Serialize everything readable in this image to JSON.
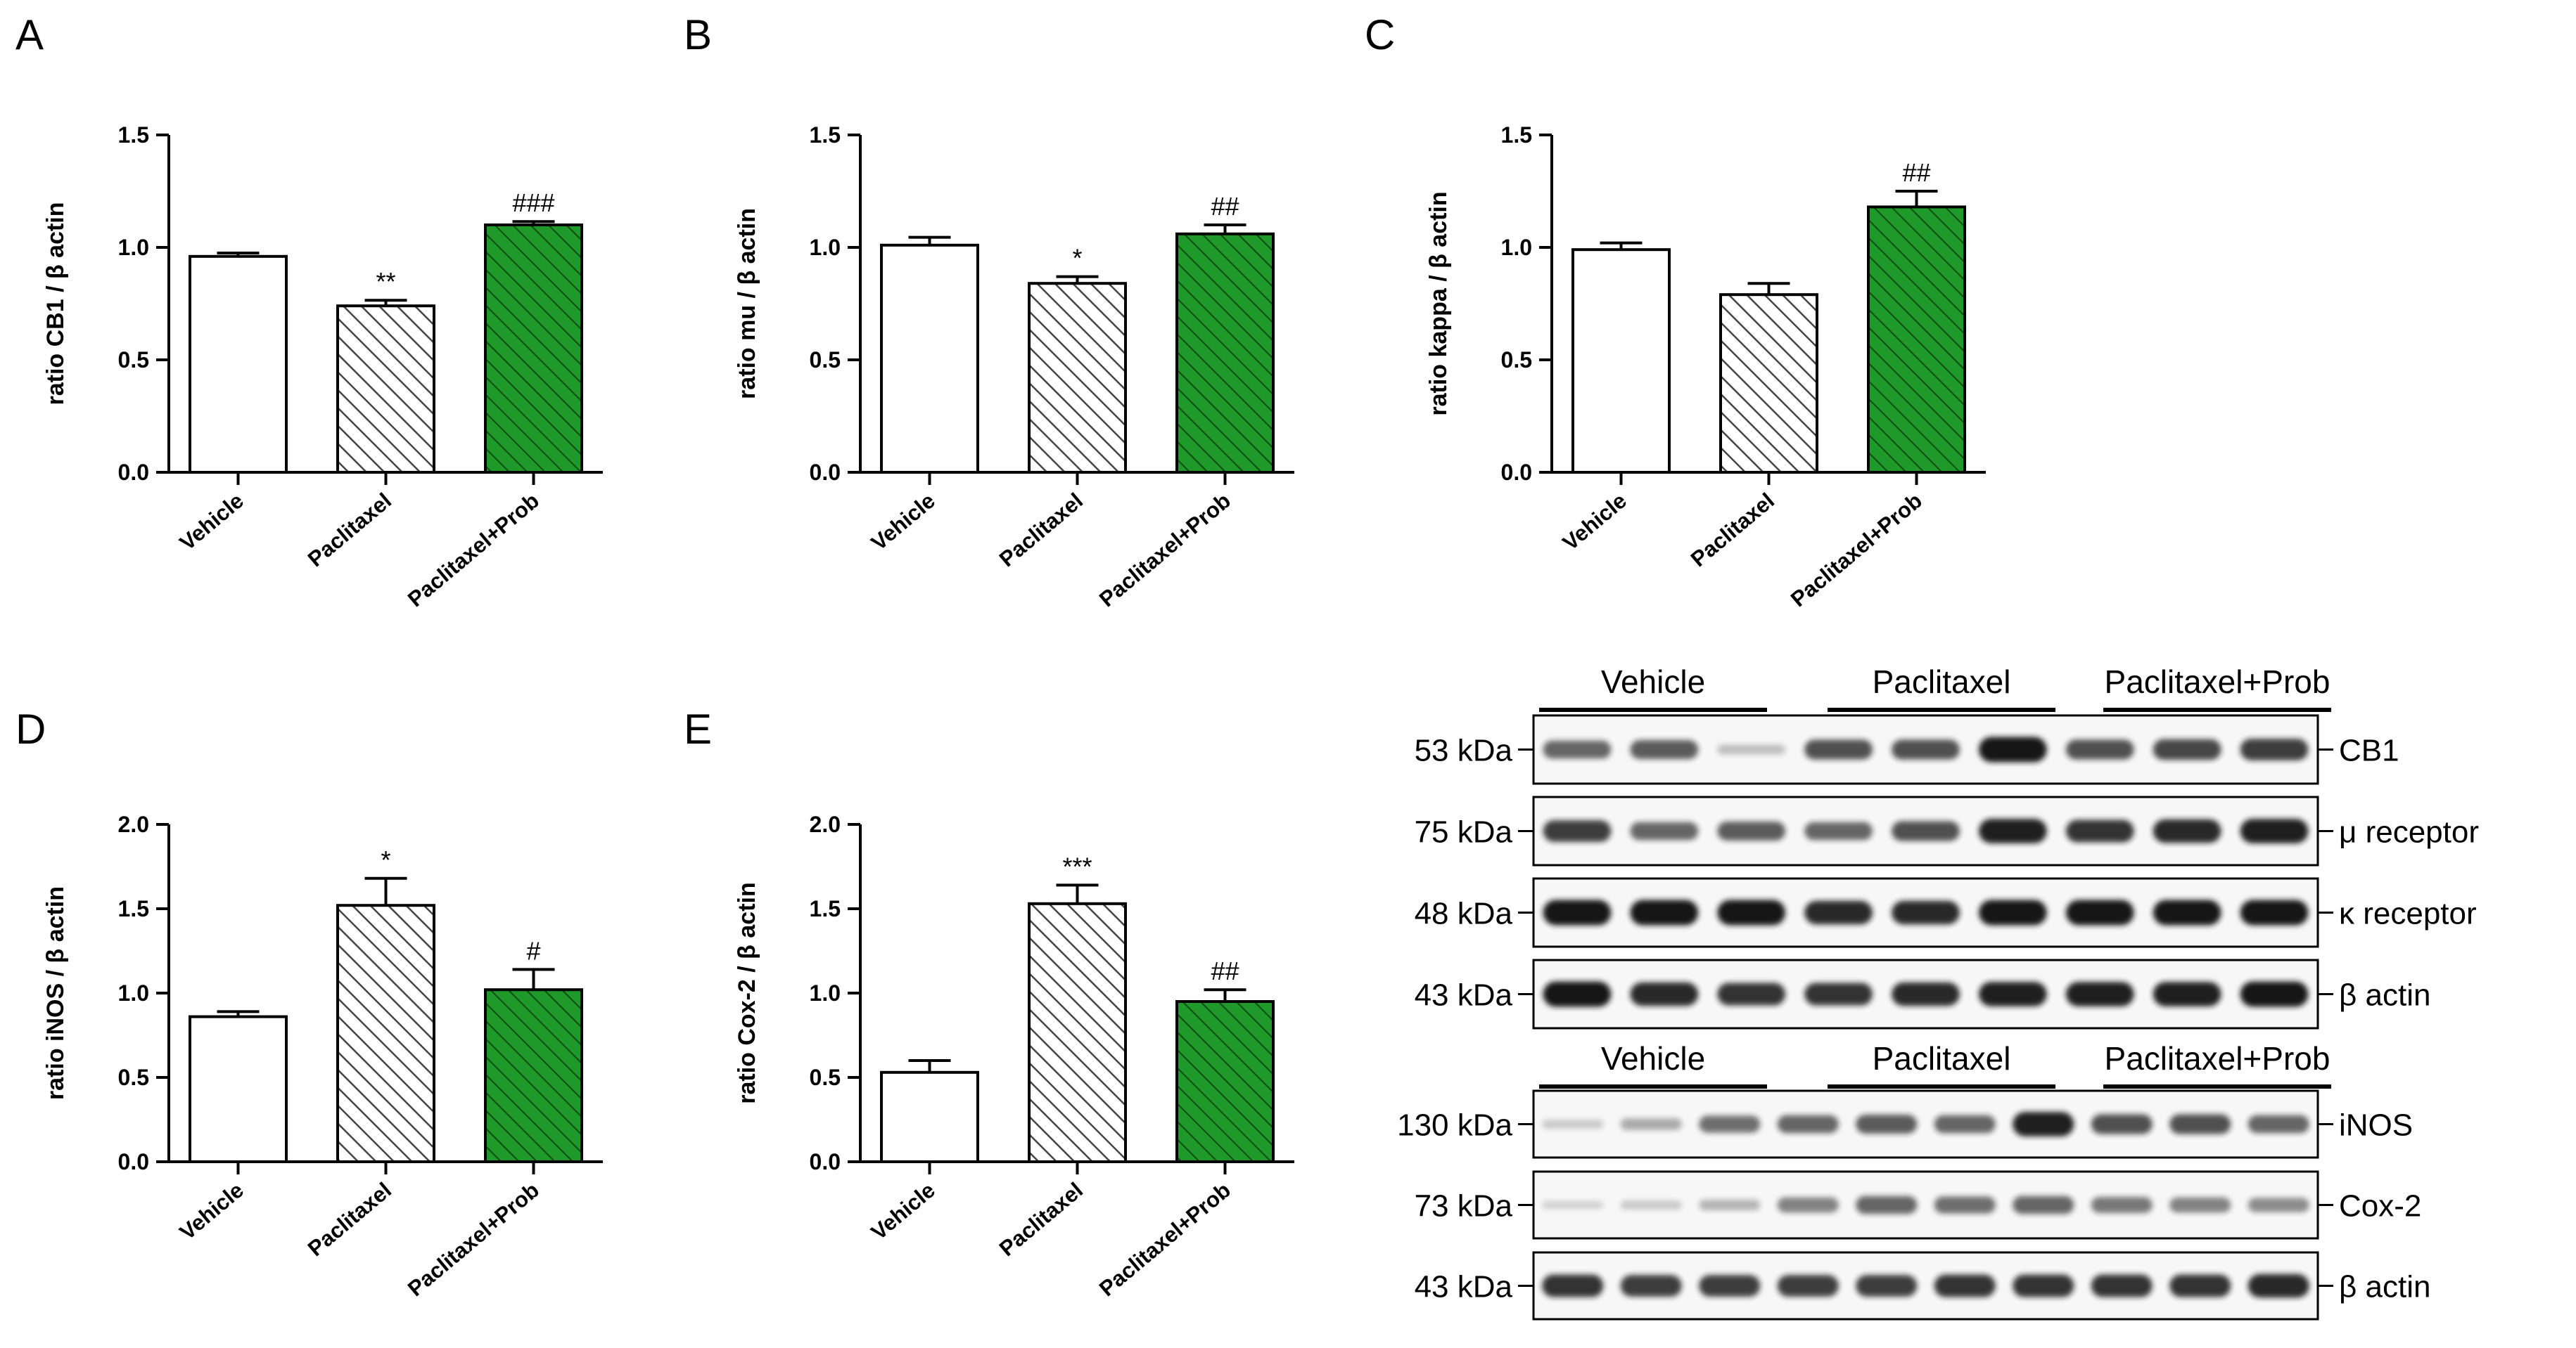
{
  "colors": {
    "vehicle_fill": "#ffffff",
    "paclitaxel_hatch": "#444444",
    "prob_fill": "#1f9a2a",
    "prob_hatch": "#0b4d12",
    "axis": "#000000",
    "blot_bg": "#f7f7f7",
    "band": "#141414"
  },
  "chart_data": [
    {
      "panel": "A",
      "type": "bar",
      "categories": [
        "Vehicle",
        "Paclitaxel",
        "Paclitaxel+Prob"
      ],
      "values": [
        0.96,
        0.74,
        1.1
      ],
      "errors": [
        0.015,
        0.025,
        0.015
      ],
      "annotations": [
        "",
        "**",
        "###"
      ],
      "ylabel": "ratio CB1 / β actin",
      "ylim": [
        0,
        1.5
      ],
      "yticks": [
        "0.0",
        "0.5",
        "1.0",
        "1.5"
      ]
    },
    {
      "panel": "B",
      "type": "bar",
      "categories": [
        "Vehicle",
        "Paclitaxel",
        "Paclitaxel+Prob"
      ],
      "values": [
        1.01,
        0.84,
        1.06
      ],
      "errors": [
        0.035,
        0.03,
        0.04
      ],
      "annotations": [
        "",
        "*",
        "##"
      ],
      "ylabel": "ratio mu / β actin",
      "ylim": [
        0,
        1.5
      ],
      "yticks": [
        "0.0",
        "0.5",
        "1.0",
        "1.5"
      ]
    },
    {
      "panel": "C",
      "type": "bar",
      "categories": [
        "Vehicle",
        "Paclitaxel",
        "Paclitaxel+Prob"
      ],
      "values": [
        0.99,
        0.79,
        1.18
      ],
      "errors": [
        0.03,
        0.05,
        0.07
      ],
      "annotations": [
        "",
        "",
        "##"
      ],
      "ylabel": "ratio kappa / β actin",
      "ylim": [
        0,
        1.5
      ],
      "yticks": [
        "0.0",
        "0.5",
        "1.0",
        "1.5"
      ]
    },
    {
      "panel": "D",
      "type": "bar",
      "categories": [
        "Vehicle",
        "Paclitaxel",
        "Paclitaxel+Prob"
      ],
      "values": [
        0.86,
        1.52,
        1.02
      ],
      "errors": [
        0.03,
        0.16,
        0.12
      ],
      "annotations": [
        "",
        "*",
        "#"
      ],
      "ylabel": "ratio iNOS / β actin",
      "ylim": [
        0,
        2.0
      ],
      "yticks": [
        "0.0",
        "0.5",
        "1.0",
        "1.5",
        "2.0"
      ]
    },
    {
      "panel": "E",
      "type": "bar",
      "categories": [
        "Vehicle",
        "Paclitaxel",
        "Paclitaxel+Prob"
      ],
      "values": [
        0.53,
        1.53,
        0.95
      ],
      "errors": [
        0.07,
        0.11,
        0.07
      ],
      "annotations": [
        "",
        "***",
        "##"
      ],
      "ylabel": "ratio Cox-2 / β actin",
      "ylim": [
        0,
        2.0
      ],
      "yticks": [
        "0.0",
        "0.5",
        "1.0",
        "1.5",
        "2.0"
      ]
    }
  ],
  "blots": {
    "top": {
      "groups": [
        "Vehicle",
        "Paclitaxel",
        "Paclitaxel+Prob"
      ],
      "rows": [
        {
          "kda": "53 kDa",
          "protein": "CB1",
          "intensity": [
            0.6,
            0.65,
            0.15,
            0.7,
            0.7,
            1.0,
            0.7,
            0.75,
            0.8
          ]
        },
        {
          "kda": "75 kDa",
          "protein": "μ receptor",
          "intensity": [
            0.8,
            0.6,
            0.65,
            0.6,
            0.7,
            0.95,
            0.85,
            0.9,
            0.95
          ]
        },
        {
          "kda": "48 kDa",
          "protein": "κ receptor",
          "intensity": [
            1.0,
            1.0,
            1.0,
            0.9,
            0.9,
            1.0,
            1.0,
            1.0,
            1.0
          ]
        },
        {
          "kda": "43 kDa",
          "protein": "β actin",
          "intensity": [
            1.0,
            0.9,
            0.85,
            0.85,
            0.9,
            0.95,
            0.95,
            0.95,
            1.0
          ]
        }
      ]
    },
    "bottom": {
      "groups": [
        "Vehicle",
        "Paclitaxel",
        "Paclitaxel+Prob"
      ],
      "rows": [
        {
          "kda": "130 kDa",
          "protein": "iNOS",
          "intensity": [
            0.1,
            0.25,
            0.55,
            0.6,
            0.65,
            0.6,
            0.95,
            0.7,
            0.7,
            0.6
          ]
        },
        {
          "kda": "73 kDa",
          "protein": "Cox-2",
          "intensity": [
            0.05,
            0.1,
            0.2,
            0.45,
            0.6,
            0.55,
            0.6,
            0.5,
            0.45,
            0.4
          ]
        },
        {
          "kda": "43 kDa",
          "protein": "β actin",
          "intensity": [
            0.85,
            0.8,
            0.8,
            0.8,
            0.8,
            0.85,
            0.85,
            0.85,
            0.85,
            0.9
          ]
        }
      ]
    }
  }
}
